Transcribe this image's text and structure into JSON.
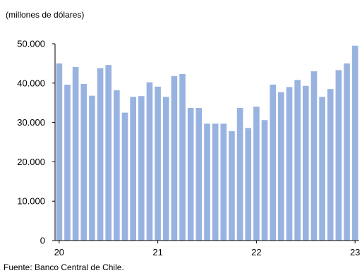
{
  "subtitle": "(millones de dólares)",
  "source": "Fuente: Banco Central de Chile.",
  "colors": {
    "bar": "#98b3e0",
    "axis": "#000000"
  },
  "chart_data": {
    "type": "bar",
    "title": "",
    "xlabel": "",
    "ylabel": "(millones de dólares)",
    "ylim": [
      0,
      50000
    ],
    "yticks": [
      0,
      10000,
      20000,
      30000,
      40000,
      50000
    ],
    "ytick_labels": [
      "0",
      "10.000",
      "20.000",
      "30.000",
      "40.000",
      "50.000"
    ],
    "xtick_labels": [
      "20",
      "21",
      "22",
      "23"
    ],
    "xtick_positions": [
      0,
      12,
      24,
      36
    ],
    "grid": false,
    "legend": "none",
    "values": [
      45000,
      39600,
      44100,
      39800,
      36800,
      43800,
      44600,
      38200,
      32500,
      36500,
      36700,
      40200,
      39100,
      36500,
      41800,
      42300,
      33700,
      33700,
      29700,
      29700,
      29700,
      27800,
      33700,
      28600,
      34000,
      30600,
      39600,
      37700,
      39000,
      40800,
      39300,
      43000,
      36500,
      38500,
      43300,
      45000,
      49500
    ]
  }
}
